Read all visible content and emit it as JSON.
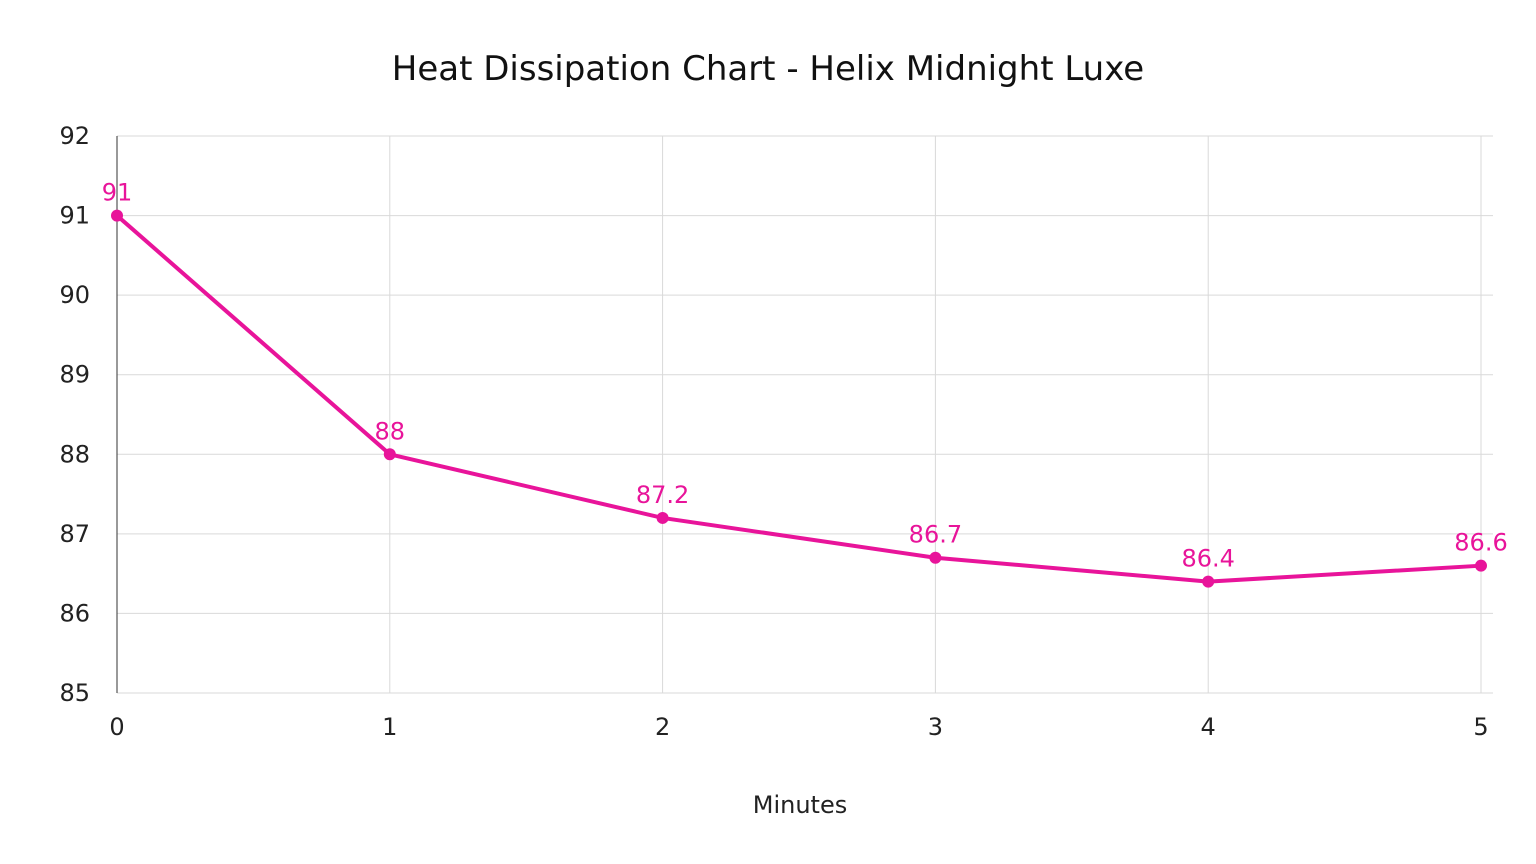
{
  "chart_data": {
    "type": "line",
    "title": "Heat Dissipation Chart - Helix Midnight Luxe",
    "xlabel": "Minutes",
    "ylabel": "",
    "x": [
      0,
      1,
      2,
      3,
      4,
      5
    ],
    "x_tick_labels": [
      "0",
      "1",
      "2",
      "3",
      "4",
      "5"
    ],
    "y_tick_labels": [
      "85",
      "86",
      "87",
      "88",
      "89",
      "90",
      "91",
      "92"
    ],
    "ylim": [
      85,
      92
    ],
    "xlim": [
      0,
      5
    ],
    "grid": true,
    "legend": "none",
    "series": [
      {
        "values": [
          91,
          88,
          87.2,
          86.7,
          86.4,
          86.6
        ],
        "labels": [
          "91",
          "88",
          "87.2",
          "86.7",
          "86.4",
          "86.6"
        ],
        "color": "#e8149a"
      }
    ]
  }
}
